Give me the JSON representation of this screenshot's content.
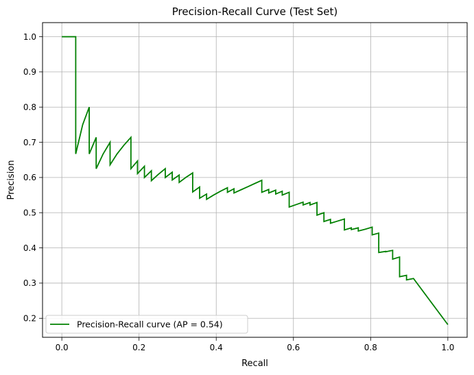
{
  "chart_data": {
    "type": "line",
    "title": "Precision-Recall Curve (Test Set)",
    "xlabel": "Recall",
    "ylabel": "Precision",
    "xlim": [
      -0.05,
      1.05
    ],
    "ylim": [
      0.146,
      1.04
    ],
    "xticks": [
      0.0,
      0.2,
      0.4,
      0.6,
      0.8,
      1.0
    ],
    "yticks": [
      0.2,
      0.3,
      0.4,
      0.5,
      0.6,
      0.7,
      0.8,
      0.9,
      1.0
    ],
    "grid": true,
    "legend_position": "lower-left",
    "series": [
      {
        "name": "Precision-Recall curve (AP = 0.54)",
        "color": "#008000",
        "points": [
          [
            0.0,
            1.0
          ],
          [
            0.036,
            1.0
          ],
          [
            0.036,
            0.667
          ],
          [
            0.054,
            0.75
          ],
          [
            0.071,
            0.8
          ],
          [
            0.071,
            0.667
          ],
          [
            0.089,
            0.714
          ],
          [
            0.089,
            0.625
          ],
          [
            0.107,
            0.667
          ],
          [
            0.125,
            0.7
          ],
          [
            0.125,
            0.636
          ],
          [
            0.143,
            0.667
          ],
          [
            0.161,
            0.692
          ],
          [
            0.179,
            0.714
          ],
          [
            0.179,
            0.625
          ],
          [
            0.196,
            0.647
          ],
          [
            0.196,
            0.611
          ],
          [
            0.214,
            0.632
          ],
          [
            0.214,
            0.6
          ],
          [
            0.232,
            0.619
          ],
          [
            0.232,
            0.591
          ],
          [
            0.25,
            0.609
          ],
          [
            0.268,
            0.625
          ],
          [
            0.268,
            0.6
          ],
          [
            0.286,
            0.615
          ],
          [
            0.286,
            0.593
          ],
          [
            0.304,
            0.607
          ],
          [
            0.304,
            0.586
          ],
          [
            0.321,
            0.6
          ],
          [
            0.339,
            0.613
          ],
          [
            0.339,
            0.559
          ],
          [
            0.357,
            0.573
          ],
          [
            0.357,
            0.541
          ],
          [
            0.375,
            0.553
          ],
          [
            0.375,
            0.538
          ],
          [
            0.393,
            0.55
          ],
          [
            0.411,
            0.561
          ],
          [
            0.429,
            0.571
          ],
          [
            0.429,
            0.558
          ],
          [
            0.446,
            0.568
          ],
          [
            0.446,
            0.556
          ],
          [
            0.464,
            0.565
          ],
          [
            0.482,
            0.574
          ],
          [
            0.5,
            0.583
          ],
          [
            0.518,
            0.592
          ],
          [
            0.518,
            0.558
          ],
          [
            0.536,
            0.566
          ],
          [
            0.536,
            0.556
          ],
          [
            0.554,
            0.564
          ],
          [
            0.554,
            0.553
          ],
          [
            0.571,
            0.561
          ],
          [
            0.571,
            0.55
          ],
          [
            0.589,
            0.558
          ],
          [
            0.589,
            0.516
          ],
          [
            0.607,
            0.523
          ],
          [
            0.625,
            0.53
          ],
          [
            0.625,
            0.522
          ],
          [
            0.643,
            0.529
          ],
          [
            0.643,
            0.522
          ],
          [
            0.661,
            0.529
          ],
          [
            0.661,
            0.493
          ],
          [
            0.679,
            0.5
          ],
          [
            0.679,
            0.475
          ],
          [
            0.696,
            0.481
          ],
          [
            0.696,
            0.47
          ],
          [
            0.714,
            0.476
          ],
          [
            0.732,
            0.482
          ],
          [
            0.732,
            0.451
          ],
          [
            0.75,
            0.457
          ],
          [
            0.75,
            0.452
          ],
          [
            0.768,
            0.457
          ],
          [
            0.768,
            0.448
          ],
          [
            0.786,
            0.453
          ],
          [
            0.804,
            0.459
          ],
          [
            0.804,
            0.437
          ],
          [
            0.821,
            0.442
          ],
          [
            0.821,
            0.387
          ],
          [
            0.839,
            0.39
          ],
          [
            0.839,
            0.389
          ],
          [
            0.857,
            0.393
          ],
          [
            0.857,
            0.368
          ],
          [
            0.875,
            0.374
          ],
          [
            0.875,
            0.318
          ],
          [
            0.893,
            0.322
          ],
          [
            0.893,
            0.309
          ],
          [
            0.911,
            0.313
          ],
          [
            1.0,
            0.182
          ]
        ]
      }
    ]
  }
}
